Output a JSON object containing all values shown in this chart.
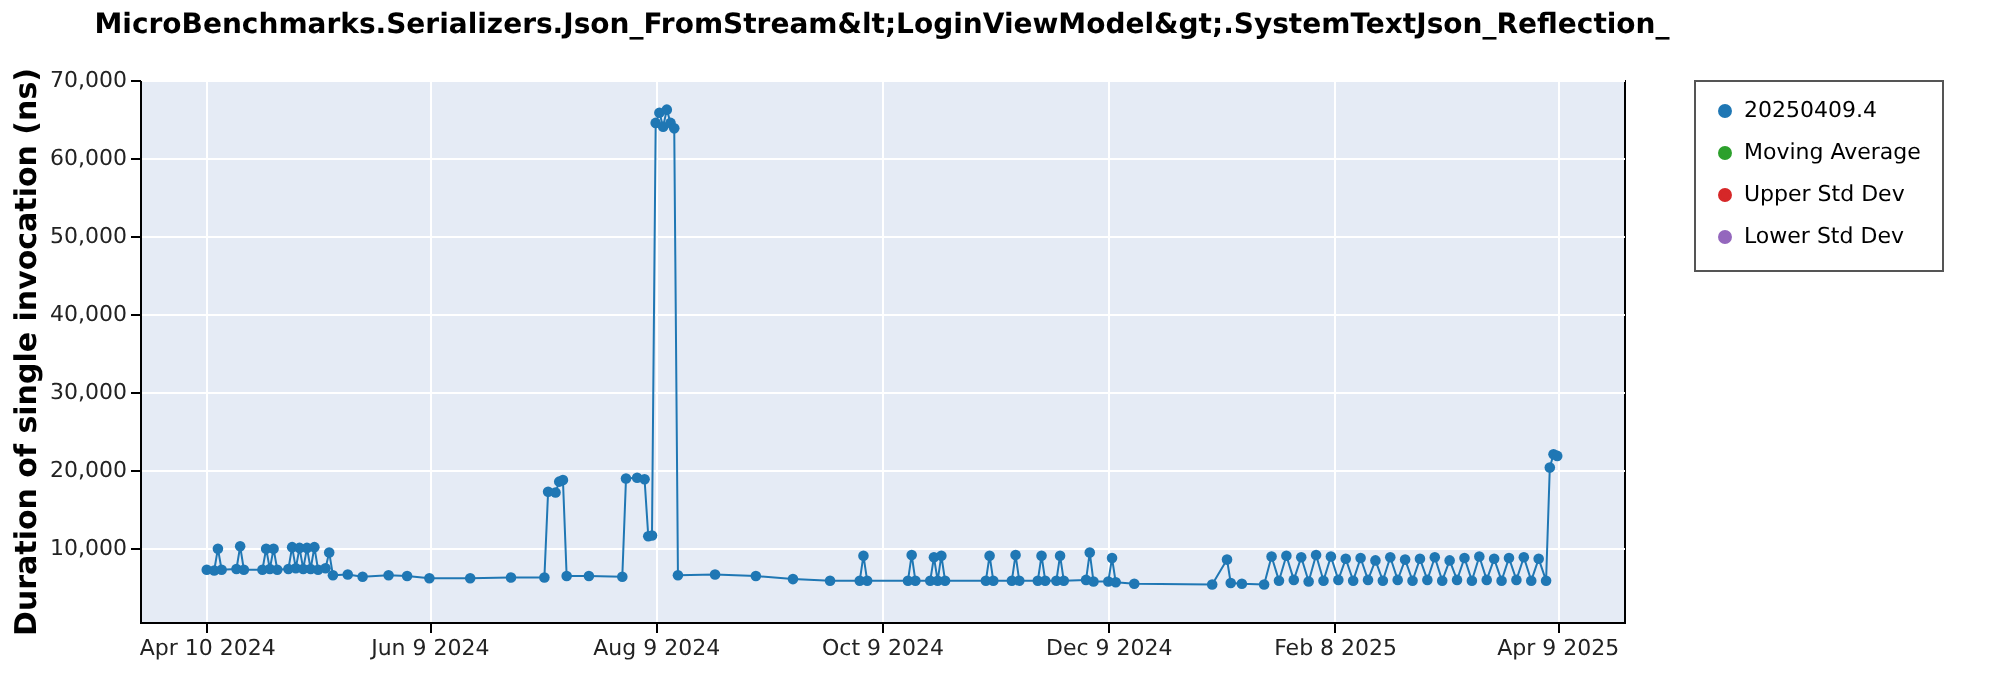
{
  "chart_data": {
    "type": "line",
    "title": "MicroBenchmarks.Serializers.Json_FromStream&lt;LoginViewModel&gt;.SystemTextJson_Reflection_",
    "ylabel": "Duration of single invocation (ns)",
    "xlim": [
      "2024-03-23",
      "2025-04-27"
    ],
    "xticks": [
      {
        "value": "2024-04-10",
        "label": "Apr 10 2024"
      },
      {
        "value": "2024-06-09",
        "label": "Jun 9 2024"
      },
      {
        "value": "2024-08-09",
        "label": "Aug 9 2024"
      },
      {
        "value": "2024-10-09",
        "label": "Oct 9 2024"
      },
      {
        "value": "2024-12-09",
        "label": "Dec 9 2024"
      },
      {
        "value": "2025-02-08",
        "label": "Feb 8 2025"
      },
      {
        "value": "2025-04-09",
        "label": "Apr 9 2025"
      }
    ],
    "ylim": [
      500,
      70000
    ],
    "yticks": [
      {
        "value": 10000,
        "label": "10,000"
      },
      {
        "value": 20000,
        "label": "20,000"
      },
      {
        "value": 30000,
        "label": "30,000"
      },
      {
        "value": 40000,
        "label": "40,000"
      },
      {
        "value": 50000,
        "label": "50,000"
      },
      {
        "value": 60000,
        "label": "60,000"
      },
      {
        "value": 70000,
        "label": "70,000"
      }
    ],
    "grid": true,
    "legend": "right",
    "marker": "circle",
    "line_style": "solid",
    "series": [
      {
        "name": "20250409.4",
        "color": "#1f77b4",
        "x": [
          "2024-04-10",
          "2024-04-12",
          "2024-04-13",
          "2024-04-14",
          "2024-04-18",
          "2024-04-19",
          "2024-04-20",
          "2024-04-25",
          "2024-04-26",
          "2024-04-27",
          "2024-04-28",
          "2024-04-29",
          "2024-05-02",
          "2024-05-03",
          "2024-05-04",
          "2024-05-05",
          "2024-05-06",
          "2024-05-07",
          "2024-05-08",
          "2024-05-09",
          "2024-05-10",
          "2024-05-12",
          "2024-05-13",
          "2024-05-14",
          "2024-05-18",
          "2024-05-22",
          "2024-05-29",
          "2024-06-03",
          "2024-06-09",
          "2024-06-20",
          "2024-07-01",
          "2024-07-10",
          "2024-07-11",
          "2024-07-13",
          "2024-07-14",
          "2024-07-15",
          "2024-07-16",
          "2024-07-22",
          "2024-07-31",
          "2024-08-01",
          "2024-08-04",
          "2024-08-06",
          "2024-08-07",
          "2024-08-08",
          "2024-08-09",
          "2024-08-10",
          "2024-08-11",
          "2024-08-12",
          "2024-08-13",
          "2024-08-14",
          "2024-08-15",
          "2024-08-25",
          "2024-09-05",
          "2024-09-15",
          "2024-09-25",
          "2024-10-03",
          "2024-10-04",
          "2024-10-05",
          "2024-10-16",
          "2024-10-17",
          "2024-10-18",
          "2024-10-22",
          "2024-10-23",
          "2024-10-24",
          "2024-10-25",
          "2024-10-26",
          "2024-11-06",
          "2024-11-07",
          "2024-11-08",
          "2024-11-13",
          "2024-11-14",
          "2024-11-15",
          "2024-11-20",
          "2024-11-21",
          "2024-11-22",
          "2024-11-25",
          "2024-11-26",
          "2024-11-27",
          "2024-12-03",
          "2024-12-04",
          "2024-12-05",
          "2024-12-09",
          "2024-12-10",
          "2024-12-11",
          "2024-12-16",
          "2025-01-06",
          "2025-01-10",
          "2025-01-11",
          "2025-01-14",
          "2025-01-20",
          "2025-01-22",
          "2025-01-24",
          "2025-01-26",
          "2025-01-28",
          "2025-01-30",
          "2025-02-01",
          "2025-02-03",
          "2025-02-05",
          "2025-02-07",
          "2025-02-09",
          "2025-02-11",
          "2025-02-13",
          "2025-02-15",
          "2025-02-17",
          "2025-02-19",
          "2025-02-21",
          "2025-02-23",
          "2025-02-25",
          "2025-02-27",
          "2025-03-01",
          "2025-03-03",
          "2025-03-05",
          "2025-03-07",
          "2025-03-09",
          "2025-03-11",
          "2025-03-13",
          "2025-03-15",
          "2025-03-17",
          "2025-03-19",
          "2025-03-21",
          "2025-03-23",
          "2025-03-25",
          "2025-03-27",
          "2025-03-29",
          "2025-03-31",
          "2025-04-02",
          "2025-04-04",
          "2025-04-06",
          "2025-04-07",
          "2025-04-08",
          "2025-04-09"
        ],
        "values": [
          7200,
          7100,
          9900,
          7200,
          7300,
          10200,
          7200,
          7200,
          9900,
          7300,
          9900,
          7200,
          7300,
          10100,
          7400,
          10000,
          7300,
          10000,
          7300,
          10100,
          7200,
          7400,
          9400,
          6500,
          6600,
          6300,
          6500,
          6400,
          6100,
          6100,
          6200,
          6200,
          17200,
          17100,
          18500,
          18700,
          6400,
          6400,
          6300,
          18900,
          19000,
          18800,
          11500,
          11600,
          64500,
          65800,
          64000,
          66200,
          64500,
          63800,
          6500,
          6600,
          6400,
          6000,
          5800,
          5800,
          9000,
          5800,
          5800,
          9100,
          5800,
          5800,
          8800,
          5800,
          9000,
          5800,
          5800,
          9000,
          5800,
          5800,
          9100,
          5800,
          5800,
          9000,
          5800,
          5800,
          9000,
          5800,
          5900,
          9400,
          5700,
          5700,
          8700,
          5600,
          5400,
          5300,
          8500,
          5500,
          5400,
          5300,
          8900,
          5800,
          9000,
          5900,
          8800,
          5700,
          9100,
          5800,
          8900,
          5900,
          8600,
          5800,
          8700,
          5900,
          8400,
          5800,
          8800,
          5900,
          8500,
          5800,
          8600,
          5900,
          8800,
          5800,
          8400,
          5900,
          8700,
          5800,
          8900,
          5900,
          8600,
          5800,
          8700,
          5900,
          8800,
          5800,
          8600,
          5800,
          20300,
          22000,
          21800
        ]
      },
      {
        "name": "Moving Average",
        "color": "#2ca02c"
      },
      {
        "name": "Upper Std Dev",
        "color": "#d62728"
      },
      {
        "name": "Lower Std Dev",
        "color": "#9467bd"
      }
    ]
  }
}
